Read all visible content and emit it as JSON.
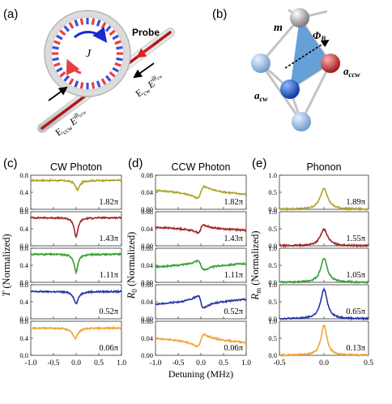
{
  "panel_labels": {
    "a": "(a)",
    "b": "(b)",
    "c": "(c)",
    "d": "(d)",
    "e": "(e)"
  },
  "schematic_a": {
    "probe_label": "Probe",
    "coupling_label": "J",
    "ecw_label": "E",
    "ecw_sub": "cw",
    "ecw_exp": "iθ",
    "ecw_exp_sub": "cw",
    "eccw_label": "E",
    "eccw_sub": "ccw",
    "eccw_exp": "iθ",
    "eccw_exp_sub": "ccw",
    "colors": {
      "ring": "#d0d0d0",
      "pattern_red": "#e84040",
      "pattern_blue": "#3a4fd8",
      "fiber": "#b01818",
      "probe_arrow": "#e02020"
    }
  },
  "schematic_b": {
    "node_m": "m",
    "node_accw": "a",
    "node_accw_sub": "ccw",
    "node_acw": "a",
    "node_acw_sub": "cw",
    "flux": "Φ",
    "flux_sub": "B",
    "colors": {
      "m": "#9a9a9a",
      "accw": "#c03030",
      "acw": "#1a56c8",
      "side": "#8fb6de",
      "triangle": "#4a8fd0"
    }
  },
  "chart_data": [
    {
      "type": "line",
      "title": "CW Photon",
      "ylabel": "T (Normalized)",
      "ylabel_var": "T",
      "ylabel_rest": " (Normalized)",
      "xlabel": "",
      "xlim": [
        -1.0,
        1.0
      ],
      "xticks": [
        "-1.0",
        "-0.5",
        "0.0",
        "0.5",
        "1.0"
      ],
      "ylim": [
        0.0,
        0.8
      ],
      "yticks": [
        "0.0",
        "0.4",
        "0.8"
      ],
      "series": [
        {
          "phase": "1.82π",
          "color": "#a8a020",
          "baseline": 0.68,
          "dip": -0.22,
          "width": 0.06,
          "asym": 0.03
        },
        {
          "phase": "1.43π",
          "color": "#9a1a1a",
          "baseline": 0.66,
          "dip": -0.45,
          "width": 0.05,
          "asym": 0.0
        },
        {
          "phase": "1.11π",
          "color": "#2a9a2a",
          "baseline": 0.66,
          "dip": -0.42,
          "width": 0.05,
          "asym": 0.0
        },
        {
          "phase": "0.52π",
          "color": "#1a2aa0",
          "baseline": 0.64,
          "dip": -0.28,
          "width": 0.06,
          "asym": 0.0
        },
        {
          "phase": "0.06π",
          "color": "#f0a030",
          "baseline": 0.64,
          "dip": -0.24,
          "width": 0.07,
          "asym": -0.02
        }
      ]
    },
    {
      "type": "line",
      "title": "CCW Photon",
      "ylabel": "R0 (Normalized)",
      "ylabel_var": "R",
      "ylabel_sub": "0",
      "ylabel_rest": " (Normalized)",
      "xlabel": "Detuning (MHz)",
      "xlim": [
        -1.0,
        1.0
      ],
      "xticks": [
        "-1.0",
        "-0.5",
        "0.0",
        "0.5",
        "1.0"
      ],
      "ylim": [
        0.0,
        0.08
      ],
      "yticks": [
        "0.00",
        "0.04",
        "0.08"
      ],
      "series": [
        {
          "phase": "1.82π",
          "color": "#a8a020",
          "baseline": 0.04,
          "disp": 0.028,
          "width": 0.08
        },
        {
          "phase": "1.43π",
          "color": "#9a1a1a",
          "baseline": 0.04,
          "disp": 0.018,
          "width": 0.06
        },
        {
          "phase": "1.11π",
          "color": "#2a9a2a",
          "baseline": 0.04,
          "disp": -0.022,
          "width": 0.07
        },
        {
          "phase": "0.52π",
          "color": "#1a2aa0",
          "baseline": 0.04,
          "disp": -0.03,
          "width": 0.06
        },
        {
          "phase": "0.06π",
          "color": "#f0a030",
          "baseline": 0.035,
          "disp": 0.028,
          "width": 0.08
        }
      ]
    },
    {
      "type": "line",
      "title": "Phonon",
      "ylabel": "Rm (Normalized)",
      "ylabel_var": "R",
      "ylabel_sub": "m",
      "ylabel_rest": " (Normalized)",
      "xlabel": "",
      "xlim": [
        -0.5,
        0.5
      ],
      "xticks": [
        "-0.5",
        "0.0",
        "0.5"
      ],
      "ylim": [
        0.0,
        1.0
      ],
      "yticks": [
        "0.0",
        "0.5",
        "1.0"
      ],
      "series": [
        {
          "phase": "1.89π",
          "color": "#a8a020",
          "peak": 0.62,
          "width": 0.05
        },
        {
          "phase": "1.55π",
          "color": "#9a1a1a",
          "peak": 0.48,
          "width": 0.05
        },
        {
          "phase": "1.05π",
          "color": "#2a9a2a",
          "peak": 0.7,
          "width": 0.045
        },
        {
          "phase": "0.65π",
          "color": "#1a2aa0",
          "peak": 0.86,
          "width": 0.045
        },
        {
          "phase": "0.13π",
          "color": "#f0a030",
          "peak": 0.88,
          "width": 0.04
        }
      ]
    }
  ]
}
